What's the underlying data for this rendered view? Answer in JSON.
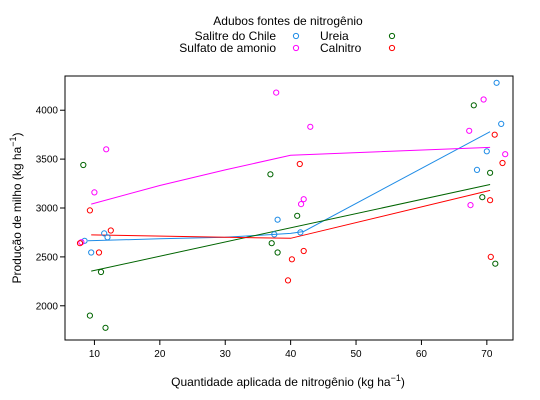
{
  "chart_data": {
    "type": "scatter",
    "legend": {
      "title": "Adubos fontes de nitrogênio",
      "placement": "top"
    },
    "xlabel": "Quantidade aplicada de nitrogênio (kg ha",
    "xlabel_sup": "−1",
    "xlabel_end": ")",
    "ylabel": "Produção de milho (kg ha",
    "ylabel_sup": "−1",
    "ylabel_end": ")",
    "xlim": [
      5.5,
      74
    ],
    "ylim": [
      1650,
      4350
    ],
    "xticks": [
      10,
      20,
      30,
      40,
      50,
      60,
      70
    ],
    "yticks": [
      2000,
      2500,
      3000,
      3500,
      4000
    ],
    "series": [
      {
        "name": "Salitre do Chile",
        "color": "#1f8ce6",
        "points": [
          [
            8.5,
            2665
          ],
          [
            9.5,
            2545
          ],
          [
            11.5,
            2740
          ],
          [
            12,
            2700
          ],
          [
            37.5,
            2730
          ],
          [
            38,
            2880
          ],
          [
            41.5,
            2750
          ],
          [
            68.5,
            3390
          ],
          [
            70,
            3580
          ],
          [
            71.5,
            4280
          ],
          [
            72.2,
            3860
          ]
        ],
        "line": [
          [
            9,
            2665
          ],
          [
            20,
            2685
          ],
          [
            30,
            2700
          ],
          [
            40,
            2740
          ],
          [
            42,
            2760
          ],
          [
            70.5,
            3780
          ]
        ]
      },
      {
        "name": "Sulfato de amonio",
        "color": "#ff00ff",
        "points": [
          [
            8,
            2650
          ],
          [
            10,
            3160
          ],
          [
            11.8,
            3600
          ],
          [
            37.8,
            4180
          ],
          [
            41.6,
            3040
          ],
          [
            42,
            3090
          ],
          [
            43,
            3830
          ],
          [
            67.3,
            3790
          ],
          [
            67.5,
            3030
          ],
          [
            69.5,
            4110
          ],
          [
            72.8,
            3550
          ]
        ],
        "line": [
          [
            9.5,
            3040
          ],
          [
            20,
            3230
          ],
          [
            30,
            3390
          ],
          [
            40,
            3540
          ],
          [
            70.5,
            3620
          ]
        ]
      },
      {
        "name": "Ureia",
        "color": "#006400",
        "points": [
          [
            8.3,
            3440
          ],
          [
            9.3,
            1900
          ],
          [
            11,
            2345
          ],
          [
            11.7,
            1775
          ],
          [
            36.9,
            3345
          ],
          [
            37.1,
            2640
          ],
          [
            38,
            2545
          ],
          [
            41,
            2920
          ],
          [
            68,
            4050
          ],
          [
            69.3,
            3110
          ],
          [
            70.5,
            3360
          ],
          [
            71.3,
            2430
          ]
        ],
        "line": [
          [
            9.5,
            2355
          ],
          [
            70.5,
            3240
          ]
        ]
      },
      {
        "name": "Calnitro",
        "color": "#ff0000",
        "points": [
          [
            7.8,
            2640
          ],
          [
            9.3,
            2975
          ],
          [
            10.7,
            2545
          ],
          [
            12.5,
            2770
          ],
          [
            39.6,
            2260
          ],
          [
            40.2,
            2475
          ],
          [
            41.4,
            3450
          ],
          [
            42,
            2560
          ],
          [
            70.5,
            3080
          ],
          [
            70.6,
            2500
          ],
          [
            71.2,
            3750
          ],
          [
            72.4,
            3460
          ]
        ],
        "line": [
          [
            9.5,
            2725
          ],
          [
            30,
            2700
          ],
          [
            40,
            2690
          ],
          [
            70.5,
            3180
          ]
        ]
      }
    ]
  }
}
